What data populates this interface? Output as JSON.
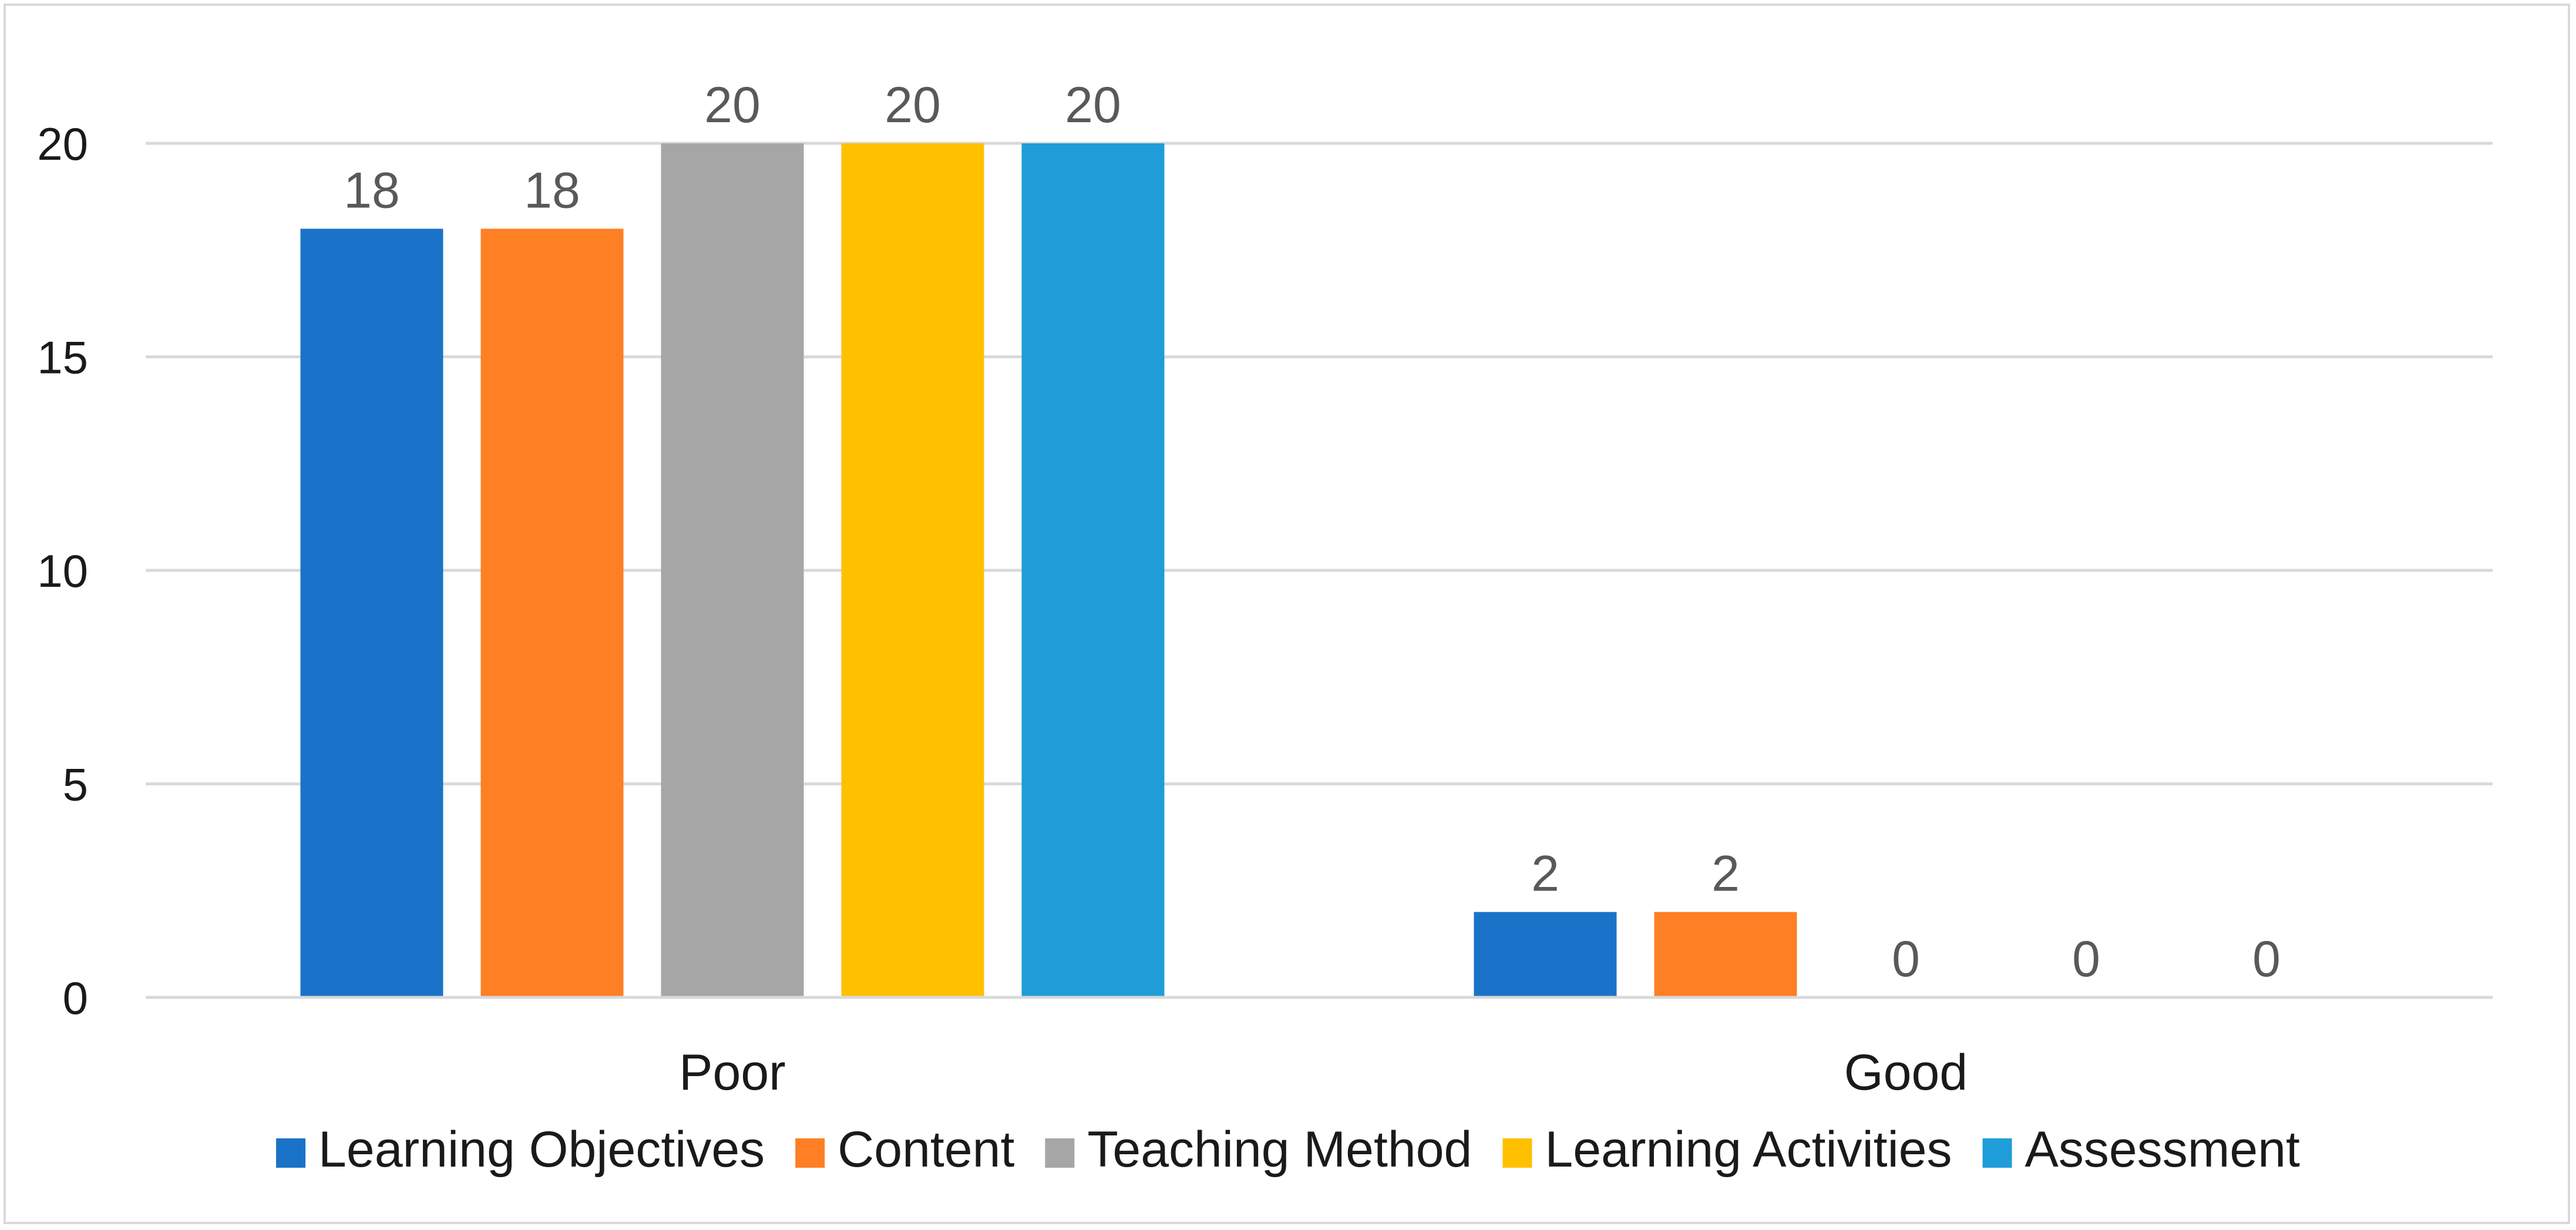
{
  "chart_data": {
    "type": "bar",
    "categories": [
      "Poor",
      "Good"
    ],
    "series": [
      {
        "name": "Learning Objectives",
        "values": [
          18,
          2
        ],
        "color": "#1a73c8"
      },
      {
        "name": "Content",
        "values": [
          18,
          2
        ],
        "color": "#fe7f24"
      },
      {
        "name": "Teaching Method",
        "values": [
          20,
          0
        ],
        "color": "#a6a6a6"
      },
      {
        "name": "Learning Activities",
        "values": [
          20,
          0
        ],
        "color": "#ffc000"
      },
      {
        "name": "Assessment",
        "values": [
          20,
          0
        ],
        "color": "#1f9dd9"
      }
    ],
    "yticks": [
      "0",
      "5",
      "10",
      "15",
      "20"
    ],
    "ylim": [
      0,
      20
    ],
    "grid": true,
    "legend": "bottom",
    "data_labels": true
  }
}
